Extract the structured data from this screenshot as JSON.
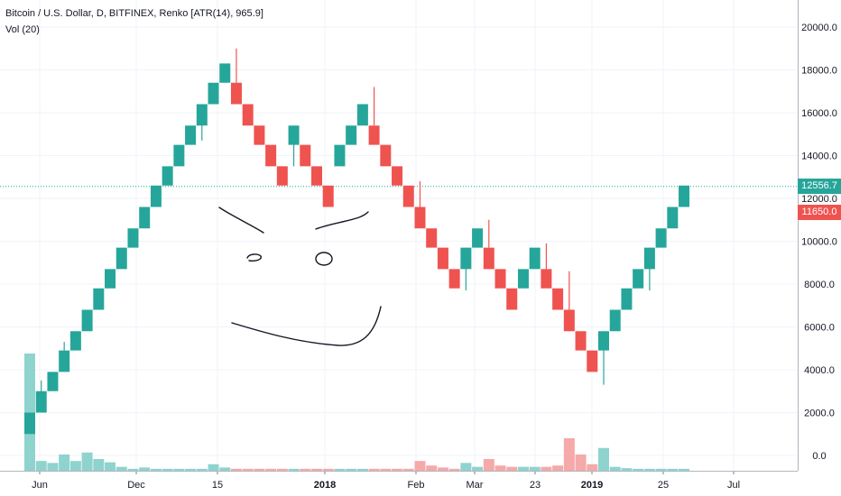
{
  "legend": {
    "title": "Bitcoin / U.S. Dollar, D, BITFINEX, Renko [ATR(14), 965.9]",
    "volume": "Vol (20)"
  },
  "price_tags": [
    {
      "text": "12556.7",
      "value": 12556.7,
      "color": "#26a69a"
    },
    {
      "text": "11650.0",
      "value": 11650.0,
      "color": "#ef5350"
    }
  ],
  "colors": {
    "up": "#26a69a",
    "down": "#ef5350",
    "up_volume": "#8fd3ce",
    "down_volume": "#f5a9a9",
    "grid": "#f0f3fa",
    "text": "#131722",
    "drawing": "#131722"
  },
  "chart_data": {
    "type": "renko",
    "brick_size": 965.9,
    "ylim": [
      -1000,
      21000
    ],
    "y_ticks": [
      "20000.0",
      "18000.0",
      "16000.0",
      "14000.0",
      "12000.0",
      "10000.0",
      "8000.0",
      "6000.0",
      "4000.0",
      "2000.0",
      "0.0"
    ],
    "x_ticks": [
      "Jun",
      "Dec",
      "15",
      "2018",
      "Feb",
      "Mar",
      "23",
      "2019",
      "25",
      "Jul"
    ],
    "bricks": [
      {
        "dir": "up",
        "low": 1000,
        "high": 2000,
        "wick": null
      },
      {
        "dir": "up",
        "low": 2000,
        "high": 3000,
        "wick": [
          2000,
          3500
        ]
      },
      {
        "dir": "up",
        "low": 3000,
        "high": 3900,
        "wick": null
      },
      {
        "dir": "up",
        "low": 3900,
        "high": 4900,
        "wick": [
          3900,
          5300
        ]
      },
      {
        "dir": "up",
        "low": 4900,
        "high": 5800,
        "wick": null
      },
      {
        "dir": "up",
        "low": 5800,
        "high": 6800,
        "wick": null
      },
      {
        "dir": "up",
        "low": 6800,
        "high": 7800,
        "wick": null
      },
      {
        "dir": "up",
        "low": 7800,
        "high": 8700,
        "wick": null
      },
      {
        "dir": "up",
        "low": 8700,
        "high": 9700,
        "wick": null
      },
      {
        "dir": "up",
        "low": 9700,
        "high": 10600,
        "wick": null
      },
      {
        "dir": "up",
        "low": 10600,
        "high": 11600,
        "wick": null
      },
      {
        "dir": "up",
        "low": 11600,
        "high": 12600,
        "wick": null
      },
      {
        "dir": "up",
        "low": 12600,
        "high": 13500,
        "wick": null
      },
      {
        "dir": "up",
        "low": 13500,
        "high": 14500,
        "wick": null
      },
      {
        "dir": "up",
        "low": 14500,
        "high": 15400,
        "wick": null
      },
      {
        "dir": "up",
        "low": 15400,
        "high": 16400,
        "wick": [
          14700,
          16400
        ]
      },
      {
        "dir": "up",
        "low": 16400,
        "high": 17400,
        "wick": null
      },
      {
        "dir": "up",
        "low": 17400,
        "high": 18300,
        "wick": null
      },
      {
        "dir": "down",
        "low": 16400,
        "high": 17400,
        "wick": [
          17400,
          19000
        ]
      },
      {
        "dir": "down",
        "low": 15400,
        "high": 16400,
        "wick": null
      },
      {
        "dir": "down",
        "low": 14500,
        "high": 15400,
        "wick": null
      },
      {
        "dir": "down",
        "low": 13500,
        "high": 14500,
        "wick": null
      },
      {
        "dir": "down",
        "low": 12600,
        "high": 13500,
        "wick": null
      },
      {
        "dir": "up",
        "low": 14500,
        "high": 15400,
        "wick": [
          13500,
          15400
        ]
      },
      {
        "dir": "down",
        "low": 13500,
        "high": 14500,
        "wick": null
      },
      {
        "dir": "down",
        "low": 12600,
        "high": 13500,
        "wick": null
      },
      {
        "dir": "down",
        "low": 11600,
        "high": 12600,
        "wick": null
      },
      {
        "dir": "up",
        "low": 13500,
        "high": 14500,
        "wick": null
      },
      {
        "dir": "up",
        "low": 14500,
        "high": 15400,
        "wick": null
      },
      {
        "dir": "up",
        "low": 15400,
        "high": 16400,
        "wick": null
      },
      {
        "dir": "down",
        "low": 14500,
        "high": 15400,
        "wick": [
          15400,
          17200
        ]
      },
      {
        "dir": "down",
        "low": 13500,
        "high": 14500,
        "wick": null
      },
      {
        "dir": "down",
        "low": 12600,
        "high": 13500,
        "wick": null
      },
      {
        "dir": "down",
        "low": 11600,
        "high": 12600,
        "wick": null
      },
      {
        "dir": "down",
        "low": 10600,
        "high": 11600,
        "wick": [
          11600,
          12800
        ]
      },
      {
        "dir": "down",
        "low": 9700,
        "high": 10600,
        "wick": null
      },
      {
        "dir": "down",
        "low": 8700,
        "high": 9700,
        "wick": null
      },
      {
        "dir": "down",
        "low": 7800,
        "high": 8700,
        "wick": null
      },
      {
        "dir": "up",
        "low": 8700,
        "high": 9700,
        "wick": [
          7700,
          9700
        ]
      },
      {
        "dir": "up",
        "low": 9700,
        "high": 10600,
        "wick": null
      },
      {
        "dir": "down",
        "low": 8700,
        "high": 9700,
        "wick": [
          9700,
          11000
        ]
      },
      {
        "dir": "down",
        "low": 7800,
        "high": 8700,
        "wick": null
      },
      {
        "dir": "down",
        "low": 6800,
        "high": 7800,
        "wick": null
      },
      {
        "dir": "up",
        "low": 7800,
        "high": 8700,
        "wick": null
      },
      {
        "dir": "up",
        "low": 8700,
        "high": 9700,
        "wick": null
      },
      {
        "dir": "down",
        "low": 7800,
        "high": 8700,
        "wick": [
          8700,
          9900
        ]
      },
      {
        "dir": "down",
        "low": 6800,
        "high": 7800,
        "wick": null
      },
      {
        "dir": "down",
        "low": 5800,
        "high": 6800,
        "wick": [
          5800,
          8600
        ]
      },
      {
        "dir": "down",
        "low": 4900,
        "high": 5800,
        "wick": null
      },
      {
        "dir": "down",
        "low": 3900,
        "high": 4900,
        "wick": null
      },
      {
        "dir": "up",
        "low": 4900,
        "high": 5800,
        "wick": [
          3300,
          5800
        ]
      },
      {
        "dir": "up",
        "low": 5800,
        "high": 6800,
        "wick": null
      },
      {
        "dir": "up",
        "low": 6800,
        "high": 7800,
        "wick": null
      },
      {
        "dir": "up",
        "low": 7800,
        "high": 8700,
        "wick": null
      },
      {
        "dir": "up",
        "low": 8700,
        "high": 9700,
        "wick": [
          7700,
          9700
        ]
      },
      {
        "dir": "up",
        "low": 9700,
        "high": 10600,
        "wick": null
      },
      {
        "dir": "up",
        "low": 10600,
        "high": 11600,
        "wick": null
      },
      {
        "dir": "up",
        "low": 11600,
        "high": 12600,
        "wick": null
      }
    ],
    "volume": [
      {
        "dir": "up",
        "value": 18
      },
      {
        "dir": "up",
        "value": 1.5
      },
      {
        "dir": "up",
        "value": 1.2
      },
      {
        "dir": "up",
        "value": 2.5
      },
      {
        "dir": "up",
        "value": 1.5
      },
      {
        "dir": "up",
        "value": 2.8
      },
      {
        "dir": "up",
        "value": 1.8
      },
      {
        "dir": "up",
        "value": 1.3
      },
      {
        "dir": "up",
        "value": 0.6
      },
      {
        "dir": "up",
        "value": 0.3
      },
      {
        "dir": "up",
        "value": 0.5
      },
      {
        "dir": "up",
        "value": 0.3
      },
      {
        "dir": "up",
        "value": 0.3
      },
      {
        "dir": "up",
        "value": 0.3
      },
      {
        "dir": "up",
        "value": 0.3
      },
      {
        "dir": "up",
        "value": 0.3
      },
      {
        "dir": "up",
        "value": 1.0
      },
      {
        "dir": "up",
        "value": 0.5
      },
      {
        "dir": "down",
        "value": 0.3
      },
      {
        "dir": "down",
        "value": 0.3
      },
      {
        "dir": "down",
        "value": 0.3
      },
      {
        "dir": "down",
        "value": 0.3
      },
      {
        "dir": "down",
        "value": 0.3
      },
      {
        "dir": "up",
        "value": 0.3
      },
      {
        "dir": "down",
        "value": 0.3
      },
      {
        "dir": "down",
        "value": 0.3
      },
      {
        "dir": "down",
        "value": 0.3
      },
      {
        "dir": "up",
        "value": 0.3
      },
      {
        "dir": "up",
        "value": 0.3
      },
      {
        "dir": "up",
        "value": 0.3
      },
      {
        "dir": "down",
        "value": 0.3
      },
      {
        "dir": "down",
        "value": 0.3
      },
      {
        "dir": "down",
        "value": 0.3
      },
      {
        "dir": "down",
        "value": 0.3
      },
      {
        "dir": "down",
        "value": 1.5
      },
      {
        "dir": "down",
        "value": 0.8
      },
      {
        "dir": "down",
        "value": 0.5
      },
      {
        "dir": "down",
        "value": 0.3
      },
      {
        "dir": "up",
        "value": 1.2
      },
      {
        "dir": "up",
        "value": 0.6
      },
      {
        "dir": "down",
        "value": 1.8
      },
      {
        "dir": "down",
        "value": 0.8
      },
      {
        "dir": "down",
        "value": 0.6
      },
      {
        "dir": "up",
        "value": 0.6
      },
      {
        "dir": "up",
        "value": 0.6
      },
      {
        "dir": "down",
        "value": 0.6
      },
      {
        "dir": "down",
        "value": 0.8
      },
      {
        "dir": "down",
        "value": 5.0
      },
      {
        "dir": "down",
        "value": 2.5
      },
      {
        "dir": "down",
        "value": 1.0
      },
      {
        "dir": "up",
        "value": 3.5
      },
      {
        "dir": "up",
        "value": 0.6
      },
      {
        "dir": "up",
        "value": 0.4
      },
      {
        "dir": "up",
        "value": 0.3
      },
      {
        "dir": "up",
        "value": 0.3
      },
      {
        "dir": "up",
        "value": 0.3
      },
      {
        "dir": "up",
        "value": 0.3
      },
      {
        "dir": "up",
        "value": 0.3
      }
    ],
    "volume_max": 18
  }
}
